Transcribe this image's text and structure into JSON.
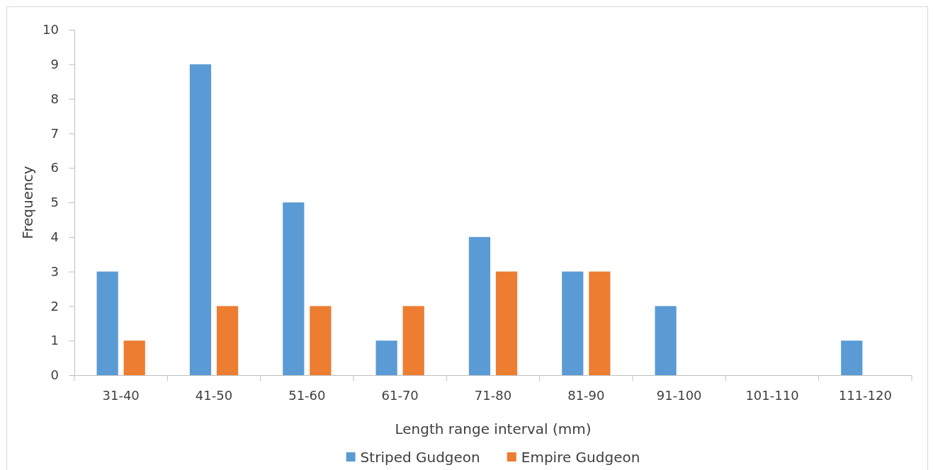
{
  "chart_data": {
    "type": "bar",
    "xlabel": "Length range interval (mm)",
    "ylabel": "Frequency",
    "categories": [
      "31-40",
      "41-50",
      "51-60",
      "61-70",
      "71-80",
      "81-90",
      "91-100",
      "101-110",
      "111-120"
    ],
    "series": [
      {
        "name": "Striped Gudgeon",
        "color": "#5b9bd5",
        "values": [
          3,
          9,
          5,
          1,
          4,
          3,
          2,
          0,
          1
        ]
      },
      {
        "name": "Empire Gudgeon",
        "color": "#ed7d31",
        "values": [
          1,
          2,
          2,
          2,
          3,
          3,
          0,
          0,
          0
        ]
      }
    ],
    "ylim": [
      0,
      10
    ],
    "yticks": [
      0,
      1,
      2,
      3,
      4,
      5,
      6,
      7,
      8,
      9,
      10
    ],
    "grid": false,
    "legend": "bottom"
  }
}
